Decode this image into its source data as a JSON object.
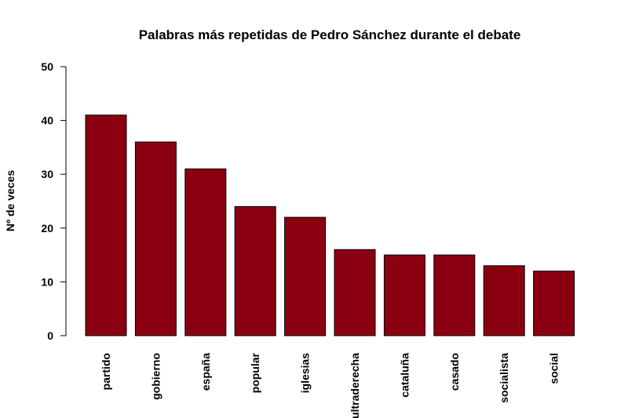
{
  "chart_data": {
    "type": "bar",
    "title": "Palabras más repetidas de Pedro Sánchez durante el debate",
    "xlabel": "",
    "ylabel": "Nº de veces",
    "ylim": [
      0,
      50
    ],
    "yticks": [
      0,
      10,
      20,
      30,
      40,
      50
    ],
    "categories": [
      "partido",
      "gobierno",
      "españa",
      "popular",
      "iglesias",
      "ultraderecha",
      "cataluña",
      "casado",
      "socialista",
      "social"
    ],
    "values": [
      41,
      36,
      31,
      24,
      22,
      16,
      15,
      15,
      13,
      12
    ],
    "bar_color": "#8b0011",
    "grid": false,
    "legend": "none"
  }
}
